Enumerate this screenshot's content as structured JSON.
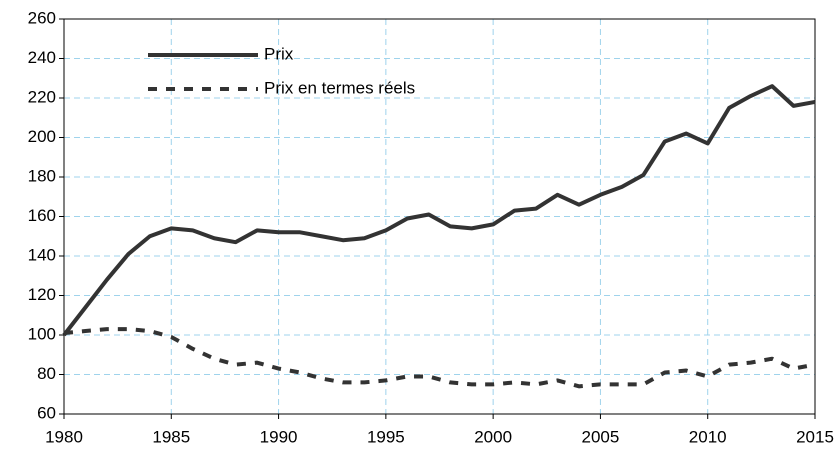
{
  "chart_data": {
    "type": "line",
    "x": [
      1980,
      1981,
      1982,
      1983,
      1984,
      1985,
      1986,
      1987,
      1988,
      1989,
      1990,
      1991,
      1992,
      1993,
      1994,
      1995,
      1996,
      1997,
      1998,
      1999,
      2000,
      2001,
      2002,
      2003,
      2004,
      2005,
      2006,
      2007,
      2008,
      2009,
      2010,
      2011,
      2012,
      2013,
      2014,
      2015
    ],
    "series": [
      {
        "name": "Prix",
        "color": "#333333",
        "style": "solid",
        "values": [
          100,
          114,
          128,
          141,
          150,
          154,
          153,
          149,
          147,
          153,
          152,
          152,
          150,
          148,
          149,
          153,
          159,
          161,
          155,
          154,
          156,
          163,
          164,
          171,
          166,
          171,
          175,
          181,
          198,
          202,
          197,
          215,
          221,
          226,
          216,
          218
        ]
      },
      {
        "name": "Prix en termes réels",
        "color": "#333333",
        "style": "dashed",
        "values": [
          101,
          102,
          103,
          103,
          102,
          99,
          93,
          88,
          85,
          86,
          83,
          81,
          78,
          76,
          76,
          77,
          79,
          79,
          76,
          75,
          75,
          76,
          75,
          77,
          74,
          75,
          75,
          75,
          81,
          82,
          79,
          85,
          86,
          88,
          83,
          85
        ]
      }
    ],
    "xlim": [
      1980,
      2015
    ],
    "xticks": [
      1980,
      1985,
      1990,
      1995,
      2000,
      2005,
      2010,
      2015
    ],
    "ylim": [
      60,
      260
    ],
    "yticks": [
      60,
      80,
      100,
      120,
      140,
      160,
      180,
      200,
      220,
      240,
      260
    ],
    "grid": true,
    "legend": "upper-left"
  }
}
